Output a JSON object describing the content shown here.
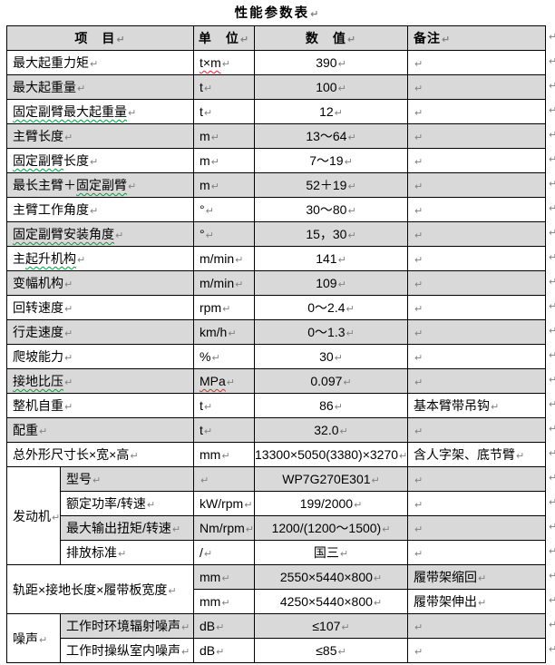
{
  "title": "性能参数表",
  "pilcrow": "↵",
  "colors": {
    "row_shade": "#D9D9D9",
    "border": "#000000",
    "formatting_mark": "#828282",
    "spell_squiggle": "#e02b2b",
    "grammar_squiggle": "#00a23c"
  },
  "header": {
    "item": "项　目",
    "unit": "单　位",
    "value": "数　值",
    "note": "备注"
  },
  "rows": [
    {
      "item": "最大起重力矩",
      "unit": [
        {
          "t": "t×m",
          "sq": "red"
        }
      ],
      "value": "390",
      "note": "",
      "shade": false
    },
    {
      "item": "最大起重量",
      "unit": "t",
      "value": "100",
      "note": "",
      "shade": true
    },
    {
      "item": [
        {
          "t": "固定副臂最大起重量",
          "sq": "green"
        }
      ],
      "unit": "t",
      "value": "12",
      "note": "",
      "shade": false
    },
    {
      "item": "主臂长度",
      "unit": "m",
      "value": "13～64",
      "note": "",
      "shade": true
    },
    {
      "item": [
        {
          "t": "固定副臂",
          "sq": "green"
        },
        {
          "t": "长度"
        }
      ],
      "unit": "m",
      "value": "7～19",
      "note": "",
      "shade": false
    },
    {
      "item": [
        {
          "t": "最长主臂＋"
        },
        {
          "t": "固定副臂",
          "sq": "green"
        }
      ],
      "unit": "m",
      "value": "52＋19",
      "note": "",
      "shade": true
    },
    {
      "item": "主臂工作角度",
      "unit": "°",
      "value": "30～80",
      "note": "",
      "shade": false
    },
    {
      "item": [
        {
          "t": "固定副臂安装角度",
          "sq": "green"
        }
      ],
      "unit": "°",
      "value": "15，30",
      "note": "",
      "shade": true
    },
    {
      "item": [
        {
          "t": "主"
        },
        {
          "t": "起升机构",
          "sq": "green"
        }
      ],
      "unit": "m/min",
      "value": "141",
      "note": "",
      "shade": false
    },
    {
      "item": "变幅机构",
      "unit": "m/min",
      "value": "109",
      "note": "",
      "shade": true
    },
    {
      "item": "回转速度",
      "unit": "rpm",
      "value": "0～2.4",
      "note": "",
      "shade": false
    },
    {
      "item": "行走速度",
      "unit": "km/h",
      "value": "0～1.3",
      "note": "",
      "shade": true
    },
    {
      "item": "爬坡能力",
      "unit": "%",
      "value": "30",
      "note": "",
      "shade": false
    },
    {
      "item": [
        {
          "t": "接地比压",
          "sq": "green"
        }
      ],
      "unit": [
        {
          "t": "MPa",
          "sq": "red"
        }
      ],
      "value": "0.097",
      "note": "",
      "shade": true
    },
    {
      "item": "整机自重",
      "unit": "t",
      "value": "86",
      "note": "基本臂带吊钩",
      "shade": false
    },
    {
      "item": "配重",
      "unit": "t",
      "value": "32.0",
      "note": "",
      "shade": true
    },
    {
      "item": "总外形尺寸长×宽×高",
      "unit": "mm",
      "value": "13300×5050(3380)×3270",
      "note": "含人字架、底节臂",
      "shade": false
    },
    {
      "group": {
        "label": "发动机",
        "rowspan": 4
      },
      "in_group": true,
      "item": "型号",
      "unit": "",
      "value": "WP7G270E301",
      "note": "",
      "shade": true
    },
    {
      "in_group": true,
      "item": "额定功率/转速",
      "unit": "kW/rpm",
      "value": "199/2000",
      "note": "",
      "shade": false
    },
    {
      "in_group": true,
      "item": "最大输出扭矩/转速",
      "unit": "Nm/rpm",
      "value": "1200/(1200～1500)",
      "note": "",
      "shade": true
    },
    {
      "in_group": true,
      "item": "排放标准",
      "unit": "/",
      "value": "国三",
      "note": "",
      "shade": false
    },
    {
      "item_span": {
        "label": "轨距×接地长度×履带板宽度",
        "rowspan": 2
      },
      "unit": "mm",
      "value": "2550×5440×800",
      "note": "履带架缩回",
      "shade": true
    },
    {
      "item_omit": true,
      "unit": "mm",
      "value": "4250×5440×800",
      "note": "履带架伸出",
      "shade": false
    },
    {
      "group": {
        "label": "噪声",
        "rowspan": 2
      },
      "in_group": true,
      "item": "工作时环境辐射噪声",
      "unit": "dB",
      "value": "≤107",
      "note": "",
      "shade": true
    },
    {
      "in_group": true,
      "item": "工作时操纵室内噪声",
      "unit": "dB",
      "value": "≤85",
      "note": "",
      "shade": false
    }
  ]
}
